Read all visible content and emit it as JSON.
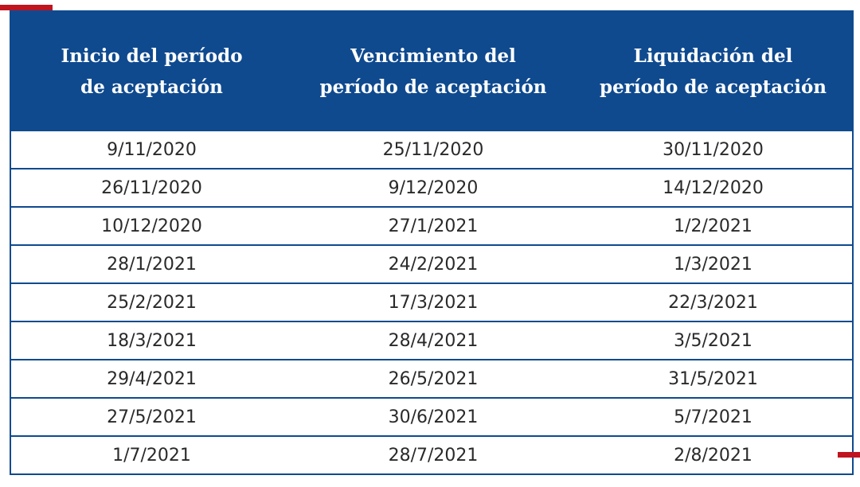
{
  "colors": {
    "header_bg": "#0f4a8f",
    "header_text": "#ffffff",
    "border": "#0f4a8f",
    "accent": "#c0141f",
    "cell_text": "#2a2a2a"
  },
  "table": {
    "headers": [
      [
        "Inicio del período",
        "de aceptación"
      ],
      [
        "Vencimiento del",
        "período de aceptación"
      ],
      [
        "Liquidación del",
        "período de aceptación"
      ]
    ],
    "rows": [
      [
        "9/11/2020",
        "25/11/2020",
        "30/11/2020"
      ],
      [
        "26/11/2020",
        "9/12/2020",
        "14/12/2020"
      ],
      [
        "10/12/2020",
        "27/1/2021",
        "1/2/2021"
      ],
      [
        "28/1/2021",
        "24/2/2021",
        "1/3/2021"
      ],
      [
        "25/2/2021",
        "17/3/2021",
        "22/3/2021"
      ],
      [
        "18/3/2021",
        "28/4/2021",
        "3/5/2021"
      ],
      [
        "29/4/2021",
        "26/5/2021",
        "31/5/2021"
      ],
      [
        "27/5/2021",
        "30/6/2021",
        "5/7/2021"
      ],
      [
        "1/7/2021",
        "28/7/2021",
        "2/8/2021"
      ]
    ]
  }
}
